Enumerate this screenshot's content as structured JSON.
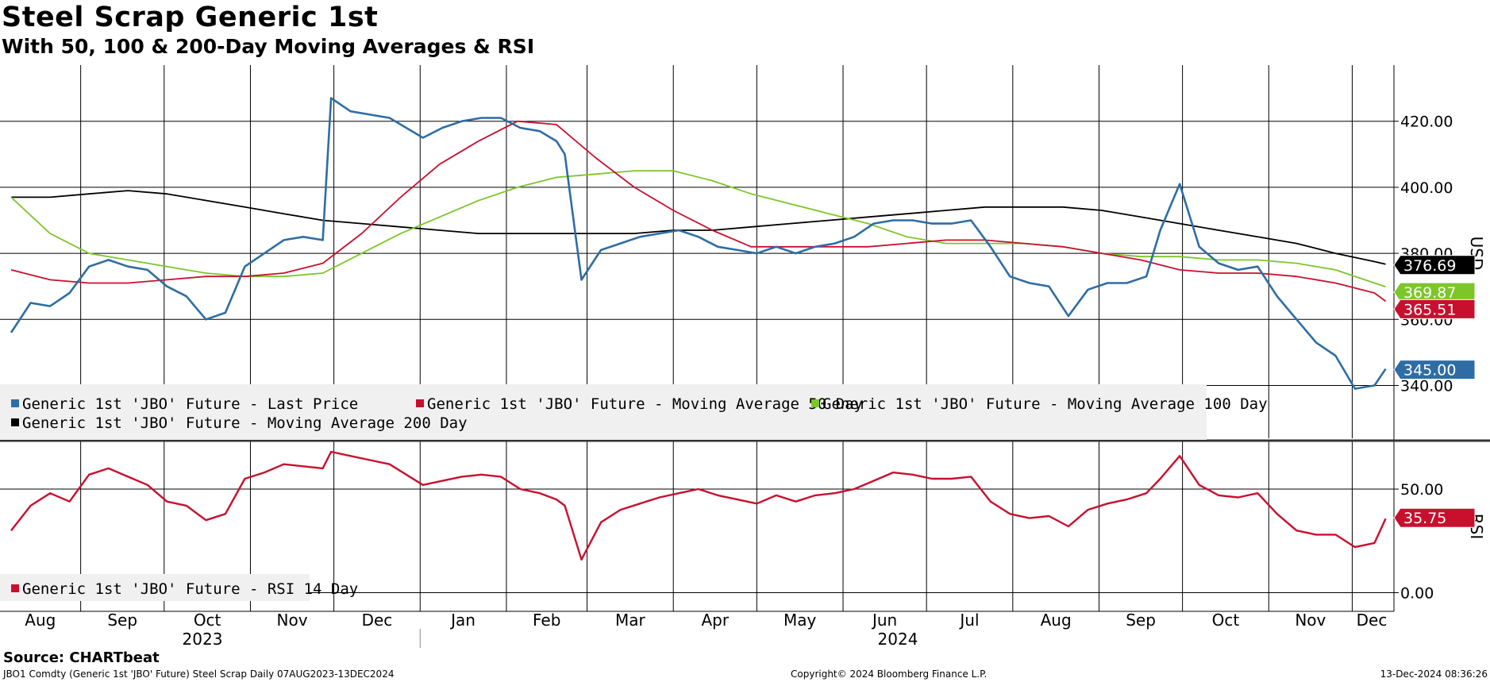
{
  "title": "Steel Scrap Generic 1st",
  "subtitle": "With 50, 100 & 200-Day Moving Averages & RSI",
  "source": "Source: CHARTbeat",
  "footer": {
    "left": "JBO1 Comdty (Generic 1st 'JBO' Future) Steel Scrap  Daily 07AUG2023-13DEC2024",
    "center": "Copyright© 2024 Bloomberg Finance L.P.",
    "right": "13-Dec-2024 08:36:26"
  },
  "colors": {
    "last_price": "#2e6da4",
    "ma50": "#c8102e",
    "ma100": "#7cc62a",
    "ma200": "#000000",
    "rsi": "#c8102e",
    "grid": "#000000",
    "legend_bg": "#f0f0f0"
  },
  "chart_data": [
    {
      "type": "line",
      "ylabel": "USD",
      "ylim": [
        324,
        437
      ],
      "yticks": [
        340,
        360,
        380,
        400,
        420
      ],
      "ytick_labels": [
        "340.00",
        "360.00",
        "380.00",
        "400.00",
        "420.00"
      ],
      "x_month_labels": [
        "Aug",
        "Sep",
        "Oct",
        "Nov",
        "Dec",
        "Jan",
        "Feb",
        "Mar",
        "Apr",
        "May",
        "Jun",
        "Jul",
        "Aug",
        "Sep",
        "Oct",
        "Nov",
        "Dec"
      ],
      "x_year_labels": [
        "2023",
        "2024"
      ],
      "grid": true,
      "legend": "bottom-left",
      "series": [
        {
          "name": "Generic 1st 'JBO' Future - Last Price",
          "last_label": "345.00",
          "x": [
            "2023-08-07",
            "2023-08-14",
            "2023-08-21",
            "2023-08-28",
            "2023-09-04",
            "2023-09-11",
            "2023-09-18",
            "2023-09-25",
            "2023-10-02",
            "2023-10-09",
            "2023-10-16",
            "2023-10-23",
            "2023-10-30",
            "2023-11-06",
            "2023-11-13",
            "2023-11-20",
            "2023-11-27",
            "2023-11-30",
            "2023-12-07",
            "2023-12-14",
            "2023-12-21",
            "2024-01-02",
            "2024-01-09",
            "2024-01-16",
            "2024-01-23",
            "2024-01-30",
            "2024-02-06",
            "2024-02-13",
            "2024-02-19",
            "2024-02-22",
            "2024-02-28",
            "2024-03-06",
            "2024-03-13",
            "2024-03-20",
            "2024-03-27",
            "2024-04-03",
            "2024-04-10",
            "2024-04-17",
            "2024-04-24",
            "2024-05-01",
            "2024-05-08",
            "2024-05-15",
            "2024-05-22",
            "2024-05-29",
            "2024-06-05",
            "2024-06-12",
            "2024-06-19",
            "2024-06-26",
            "2024-07-03",
            "2024-07-10",
            "2024-07-17",
            "2024-07-24",
            "2024-07-31",
            "2024-08-07",
            "2024-08-14",
            "2024-08-21",
            "2024-08-28",
            "2024-09-04",
            "2024-09-11",
            "2024-09-18",
            "2024-09-23",
            "2024-09-30",
            "2024-10-07",
            "2024-10-14",
            "2024-10-21",
            "2024-10-28",
            "2024-11-04",
            "2024-11-11",
            "2024-11-18",
            "2024-11-25",
            "2024-12-02",
            "2024-12-09",
            "2024-12-13"
          ],
          "values": [
            356,
            365,
            364,
            368,
            376,
            378,
            376,
            375,
            370,
            367,
            360,
            362,
            376,
            380,
            384,
            385,
            384,
            427,
            423,
            422,
            421,
            415,
            418,
            420,
            421,
            421,
            418,
            417,
            414,
            410,
            372,
            381,
            383,
            385,
            386,
            387,
            385,
            382,
            381,
            380,
            382,
            380,
            382,
            383,
            385,
            389,
            390,
            390,
            389,
            389,
            390,
            382,
            373,
            371,
            370,
            361,
            369,
            371,
            371,
            373,
            387,
            401,
            382,
            377,
            375,
            376,
            367,
            360,
            353,
            349,
            339,
            340,
            345
          ]
        },
        {
          "name": "Generic 1st 'JBO' Future - Moving Average 50 Day",
          "last_label": "365.51",
          "x": [
            "2023-08-07",
            "2023-08-21",
            "2023-09-04",
            "2023-09-18",
            "2023-10-02",
            "2023-10-16",
            "2023-10-30",
            "2023-11-13",
            "2023-11-27",
            "2023-12-11",
            "2023-12-25",
            "2024-01-08",
            "2024-01-22",
            "2024-02-05",
            "2024-02-19",
            "2024-03-04",
            "2024-03-18",
            "2024-04-01",
            "2024-04-15",
            "2024-04-29",
            "2024-05-13",
            "2024-05-27",
            "2024-06-10",
            "2024-06-24",
            "2024-07-08",
            "2024-07-22",
            "2024-08-05",
            "2024-08-19",
            "2024-09-02",
            "2024-09-16",
            "2024-09-30",
            "2024-10-14",
            "2024-10-28",
            "2024-11-11",
            "2024-11-25",
            "2024-12-09",
            "2024-12-13"
          ],
          "values": [
            375,
            372,
            371,
            371,
            372,
            373,
            373,
            374,
            377,
            386,
            397,
            407,
            414,
            420,
            419,
            409,
            400,
            393,
            387,
            382,
            382,
            382,
            382,
            383,
            384,
            384,
            383,
            382,
            380,
            378,
            375,
            374,
            374,
            373,
            371,
            368,
            365.5
          ]
        },
        {
          "name": "Generic 1st 'JBO' Future - Moving Average 100 Day",
          "last_label": "369.87",
          "x": [
            "2023-08-07",
            "2023-08-21",
            "2023-09-04",
            "2023-09-18",
            "2023-10-02",
            "2023-10-16",
            "2023-10-30",
            "2023-11-13",
            "2023-11-27",
            "2023-12-11",
            "2023-12-25",
            "2024-01-08",
            "2024-01-22",
            "2024-02-05",
            "2024-02-19",
            "2024-03-04",
            "2024-03-18",
            "2024-04-01",
            "2024-04-15",
            "2024-04-29",
            "2024-05-13",
            "2024-05-27",
            "2024-06-10",
            "2024-06-24",
            "2024-07-08",
            "2024-07-22",
            "2024-08-05",
            "2024-08-19",
            "2024-09-02",
            "2024-09-16",
            "2024-09-30",
            "2024-10-14",
            "2024-10-28",
            "2024-11-11",
            "2024-11-25",
            "2024-12-09",
            "2024-12-13"
          ],
          "values": [
            397,
            386,
            380,
            378,
            376,
            374,
            373,
            373,
            374,
            380,
            386,
            391,
            396,
            400,
            403,
            404,
            405,
            405,
            402,
            398,
            395,
            392,
            389,
            385,
            383,
            383,
            383,
            382,
            380,
            379,
            379,
            378,
            378,
            377,
            375,
            371,
            369.9
          ]
        },
        {
          "name": "Generic 1st 'JBO' Future - Moving Average 200 Day",
          "last_label": "376.69",
          "x": [
            "2023-08-07",
            "2023-08-21",
            "2023-09-04",
            "2023-09-18",
            "2023-10-02",
            "2023-10-16",
            "2023-10-30",
            "2023-11-13",
            "2023-11-27",
            "2023-12-11",
            "2023-12-25",
            "2024-01-08",
            "2024-01-22",
            "2024-02-05",
            "2024-02-19",
            "2024-03-04",
            "2024-03-18",
            "2024-04-01",
            "2024-04-15",
            "2024-04-29",
            "2024-05-13",
            "2024-05-27",
            "2024-06-10",
            "2024-06-24",
            "2024-07-08",
            "2024-07-22",
            "2024-08-05",
            "2024-08-19",
            "2024-09-02",
            "2024-09-16",
            "2024-09-30",
            "2024-10-14",
            "2024-10-28",
            "2024-11-11",
            "2024-11-25",
            "2024-12-09",
            "2024-12-13"
          ],
          "values": [
            397,
            397,
            398,
            399,
            398,
            396,
            394,
            392,
            390,
            389,
            388,
            387,
            386,
            386,
            386,
            386,
            386,
            387,
            387,
            388,
            389,
            390,
            391,
            392,
            393,
            394,
            394,
            394,
            393,
            391,
            389,
            387,
            385,
            383,
            380,
            377.5,
            376.7
          ]
        }
      ]
    },
    {
      "type": "line",
      "ylabel": "RSI",
      "ylim": [
        -9,
        73
      ],
      "yticks": [
        0,
        50
      ],
      "ytick_labels": [
        "0.00",
        "50.00"
      ],
      "grid": true,
      "legend": "bottom-left",
      "series": [
        {
          "name": "Generic 1st 'JBO' Future - RSI 14 Day",
          "last_label": "35.75",
          "x": [
            "2023-08-07",
            "2023-08-14",
            "2023-08-21",
            "2023-08-28",
            "2023-09-04",
            "2023-09-11",
            "2023-09-18",
            "2023-09-25",
            "2023-10-02",
            "2023-10-09",
            "2023-10-16",
            "2023-10-23",
            "2023-10-30",
            "2023-11-06",
            "2023-11-13",
            "2023-11-20",
            "2023-11-27",
            "2023-11-30",
            "2023-12-07",
            "2023-12-14",
            "2023-12-21",
            "2024-01-02",
            "2024-01-09",
            "2024-01-16",
            "2024-01-23",
            "2024-01-30",
            "2024-02-06",
            "2024-02-13",
            "2024-02-19",
            "2024-02-22",
            "2024-02-28",
            "2024-03-06",
            "2024-03-13",
            "2024-03-20",
            "2024-03-27",
            "2024-04-03",
            "2024-04-10",
            "2024-04-17",
            "2024-04-24",
            "2024-05-01",
            "2024-05-08",
            "2024-05-15",
            "2024-05-22",
            "2024-05-29",
            "2024-06-05",
            "2024-06-12",
            "2024-06-19",
            "2024-06-26",
            "2024-07-03",
            "2024-07-10",
            "2024-07-17",
            "2024-07-24",
            "2024-07-31",
            "2024-08-07",
            "2024-08-14",
            "2024-08-21",
            "2024-08-28",
            "2024-09-04",
            "2024-09-11",
            "2024-09-18",
            "2024-09-23",
            "2024-09-30",
            "2024-10-07",
            "2024-10-14",
            "2024-10-21",
            "2024-10-28",
            "2024-11-04",
            "2024-11-11",
            "2024-11-18",
            "2024-11-25",
            "2024-12-02",
            "2024-12-09",
            "2024-12-13"
          ],
          "values": [
            30,
            42,
            48,
            44,
            57,
            60,
            56,
            52,
            44,
            42,
            35,
            38,
            55,
            58,
            62,
            61,
            60,
            68,
            66,
            64,
            62,
            52,
            54,
            56,
            57,
            56,
            50,
            48,
            45,
            42,
            16,
            34,
            40,
            43,
            46,
            48,
            50,
            47,
            45,
            43,
            47,
            44,
            47,
            48,
            50,
            54,
            58,
            57,
            55,
            55,
            56,
            44,
            38,
            36,
            37,
            32,
            40,
            43,
            45,
            48,
            55,
            66,
            52,
            47,
            46,
            48,
            38,
            30,
            28,
            28,
            22,
            24,
            35.75
          ]
        }
      ]
    }
  ]
}
